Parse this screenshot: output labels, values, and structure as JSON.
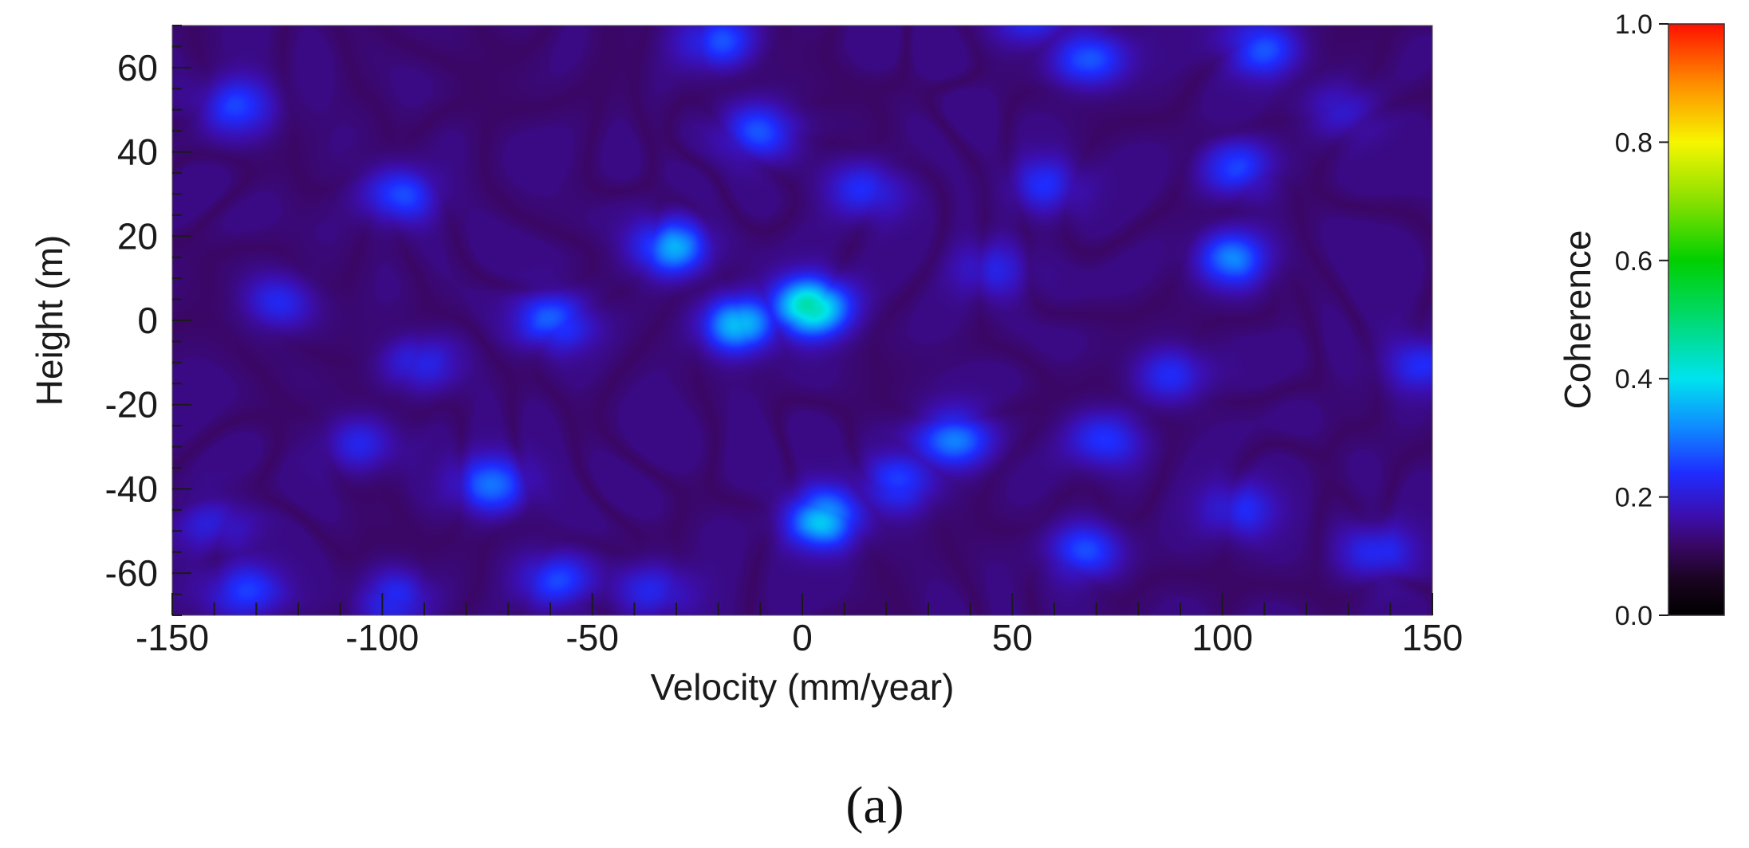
{
  "chart_data": {
    "type": "heatmap",
    "title": "",
    "xlabel": "Velocity (mm/year)",
    "ylabel": "Height (m)",
    "xlim": [
      -150,
      150
    ],
    "ylim": [
      -70,
      70
    ],
    "xticks": [
      -150,
      -100,
      -50,
      0,
      50,
      100,
      150
    ],
    "yticks": [
      -60,
      -40,
      -20,
      0,
      20,
      40,
      60
    ],
    "xtick_labels": [
      "-150",
      "-100",
      "-50",
      "0",
      "50",
      "100",
      "150"
    ],
    "ytick_labels": [
      "-60",
      "-40",
      "-20",
      "0",
      "20",
      "40",
      "60"
    ],
    "value_name": "Coherence",
    "background_level": 0.14,
    "peaks": [
      {
        "x": 2,
        "y": 3,
        "value": 0.52
      },
      {
        "x": -15,
        "y": -1,
        "value": 0.42
      },
      {
        "x": 5,
        "y": -47,
        "value": 0.4
      },
      {
        "x": -31,
        "y": 17,
        "value": 0.36
      },
      {
        "x": -96,
        "y": 30,
        "value": 0.3
      },
      {
        "x": -59,
        "y": 0,
        "value": 0.3
      },
      {
        "x": -74,
        "y": -39,
        "value": 0.3
      },
      {
        "x": -10,
        "y": 45,
        "value": 0.3
      },
      {
        "x": 36,
        "y": -28,
        "value": 0.32
      },
      {
        "x": 68,
        "y": 62,
        "value": 0.32
      },
      {
        "x": 103,
        "y": 15,
        "value": 0.32
      },
      {
        "x": 110,
        "y": 65,
        "value": 0.3
      },
      {
        "x": -20,
        "y": 66,
        "value": 0.28
      },
      {
        "x": 54,
        "y": 72,
        "value": 0.26
      },
      {
        "x": 67,
        "y": -55,
        "value": 0.28
      },
      {
        "x": 72,
        "y": -28,
        "value": 0.28
      },
      {
        "x": 88,
        "y": -13,
        "value": 0.26
      },
      {
        "x": 104,
        "y": 36,
        "value": 0.26
      },
      {
        "x": 15,
        "y": 31,
        "value": 0.26
      },
      {
        "x": 23,
        "y": -39,
        "value": 0.28
      },
      {
        "x": -59,
        "y": -62,
        "value": 0.28
      },
      {
        "x": -133,
        "y": -65,
        "value": 0.28
      },
      {
        "x": -135,
        "y": 51,
        "value": 0.26
      },
      {
        "x": -125,
        "y": 4,
        "value": 0.24
      },
      {
        "x": -105,
        "y": -29,
        "value": 0.24
      },
      {
        "x": -92,
        "y": -10,
        "value": 0.24
      },
      {
        "x": 104,
        "y": -45,
        "value": 0.24
      },
      {
        "x": 137,
        "y": -55,
        "value": 0.24
      },
      {
        "x": 147,
        "y": -10,
        "value": 0.24
      },
      {
        "x": -97,
        "y": -66,
        "value": 0.26
      },
      {
        "x": -35,
        "y": -64,
        "value": 0.24
      },
      {
        "x": 58,
        "y": 32,
        "value": 0.24
      },
      {
        "x": -140,
        "y": -48,
        "value": 0.22
      },
      {
        "x": 45,
        "y": 12,
        "value": 0.22
      },
      {
        "x": 128,
        "y": 50,
        "value": 0.22
      }
    ]
  },
  "colorbar": {
    "label": "Coherence",
    "min": 0.0,
    "max": 1.0,
    "ticks": [
      0.0,
      0.2,
      0.4,
      0.6,
      0.8,
      1.0
    ],
    "tick_labels": [
      "0.0",
      "0.2",
      "0.4",
      "0.6",
      "0.8",
      "1.0"
    ],
    "colormap": [
      {
        "v": 0.0,
        "color": "#000000"
      },
      {
        "v": 0.06,
        "color": "#1a0420"
      },
      {
        "v": 0.12,
        "color": "#3a0766"
      },
      {
        "v": 0.17,
        "color": "#3b0fb0"
      },
      {
        "v": 0.24,
        "color": "#1f2cff"
      },
      {
        "v": 0.32,
        "color": "#0f8dff"
      },
      {
        "v": 0.4,
        "color": "#00e3ee"
      },
      {
        "v": 0.52,
        "color": "#00d85a"
      },
      {
        "v": 0.6,
        "color": "#00d000"
      },
      {
        "v": 0.7,
        "color": "#88e000"
      },
      {
        "v": 0.8,
        "color": "#f6f600"
      },
      {
        "v": 0.9,
        "color": "#ff8c00"
      },
      {
        "v": 1.0,
        "color": "#ff1000"
      }
    ]
  },
  "panel_label": "(a)"
}
